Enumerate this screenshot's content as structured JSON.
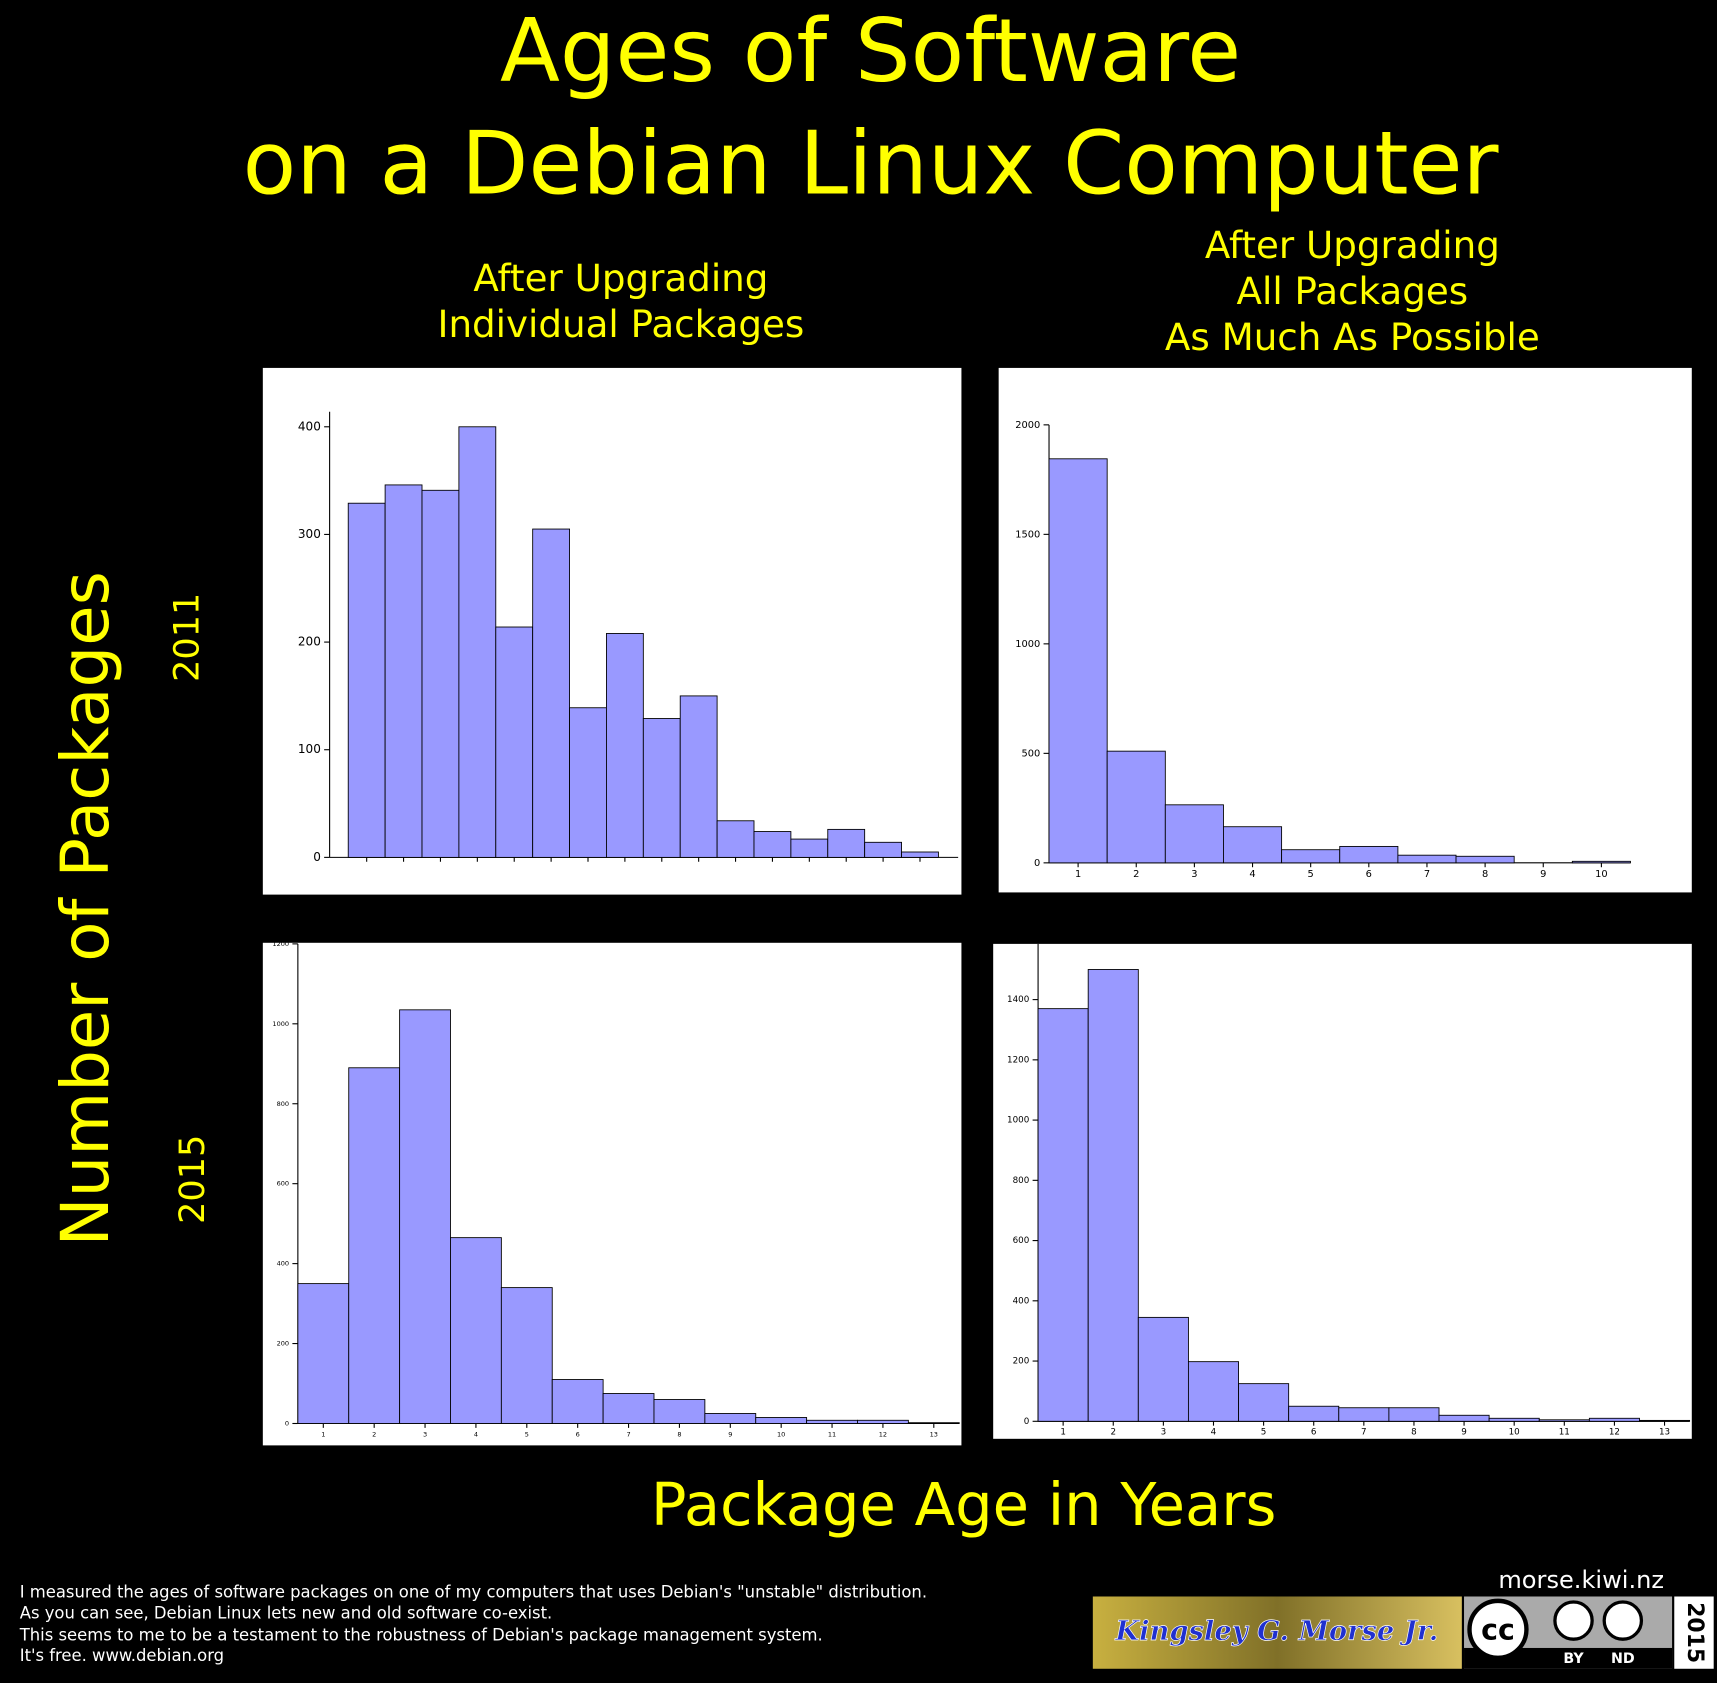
{
  "header": {
    "title": [
      "Ages of Software",
      "on a Debian Linux Computer"
    ],
    "column_titles": [
      [
        "After Upgrading",
        "Individual Packages"
      ],
      [
        "After Upgrading",
        "All Packages",
        "As Much As Possible"
      ]
    ],
    "row_labels": [
      "2011",
      "2015"
    ],
    "y_label": "Number of Packages",
    "x_label": "Package Age in Years"
  },
  "footer": {
    "notes": [
      "I measured the ages of software packages on one of my computers that uses Debian's \"unstable\" distribution.",
      "As you can see, Debian Linux lets new and old software co-exist.",
      "This seems to me to be a testament to the robustness of Debian's package management system.",
      "It's free. www.debian.org"
    ],
    "site": "morse.kiwi.nz",
    "author": "Kingsley G. Morse Jr.",
    "license": [
      "cc",
      "BY",
      "ND"
    ],
    "year": "2015"
  },
  "chart_data": [
    {
      "type": "bar",
      "categories": [
        null,
        null,
        null,
        null,
        null,
        null,
        null,
        null,
        null,
        null,
        null,
        null,
        null,
        null,
        null,
        null
      ],
      "values": [
        329,
        346,
        341,
        400,
        214,
        305,
        139,
        208,
        129,
        150,
        34,
        24,
        17,
        26,
        14,
        5
      ],
      "color": "#9999ff",
      "ylim": [
        0,
        414
      ],
      "yticks": [
        0,
        100,
        200,
        300,
        400
      ]
    },
    {
      "type": "bar",
      "categories": [
        1,
        2,
        3,
        4,
        5,
        6,
        7,
        8,
        9,
        10
      ],
      "values": [
        1845,
        510,
        265,
        165,
        60,
        75,
        35,
        30,
        0,
        7
      ],
      "color": "#9999ff",
      "ylim": [
        0,
        2000
      ],
      "yticks": [
        0,
        500,
        1000,
        1500,
        2000
      ]
    },
    {
      "type": "bar",
      "categories": [
        1,
        2,
        3,
        4,
        5,
        6,
        7,
        8,
        9,
        10,
        11,
        12,
        13
      ],
      "values": [
        350,
        890,
        1035,
        465,
        340,
        110,
        75,
        60,
        25,
        15,
        8,
        8,
        2
      ],
      "color": "#9999ff",
      "ylim": [
        0,
        1200
      ],
      "yticks": [
        0,
        200,
        400,
        600,
        800,
        1000,
        1200
      ]
    },
    {
      "type": "bar",
      "categories": [
        1,
        2,
        3,
        4,
        5,
        6,
        7,
        8,
        9,
        10,
        11,
        12,
        13
      ],
      "values": [
        1370,
        1500,
        345,
        198,
        125,
        50,
        45,
        45,
        20,
        10,
        5,
        10,
        3
      ],
      "color": "#9999ff",
      "ylim": [
        0,
        1585
      ],
      "yticks": [
        0,
        200,
        400,
        600,
        800,
        1000,
        1200,
        1400
      ]
    }
  ]
}
